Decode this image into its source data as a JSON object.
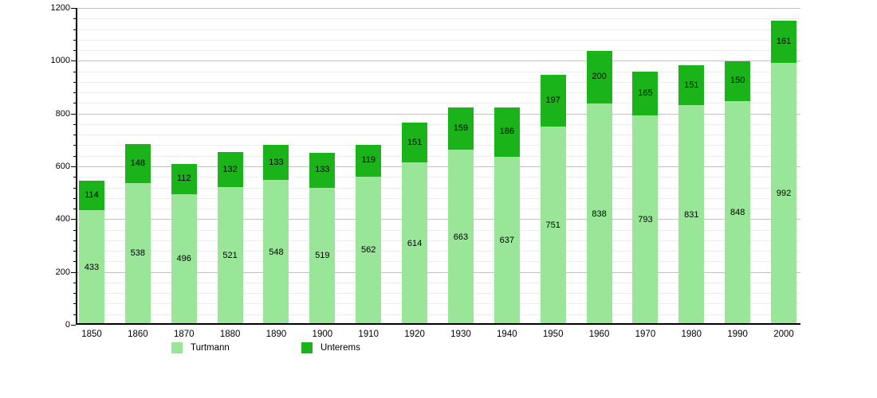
{
  "chart_data": {
    "type": "bar",
    "stacked": true,
    "title": "",
    "xlabel": "",
    "ylabel": "",
    "categories": [
      "1850",
      "1860",
      "1870",
      "1880",
      "1890",
      "1900",
      "1910",
      "1920",
      "1930",
      "1940",
      "1950",
      "1960",
      "1970",
      "1980",
      "1990",
      "2000"
    ],
    "series": [
      {
        "name": "Turtmann",
        "color": "#99e699",
        "values": [
          433,
          538,
          496,
          521,
          548,
          519,
          562,
          614,
          663,
          637,
          751,
          838,
          793,
          831,
          848,
          992
        ]
      },
      {
        "name": "Unterems",
        "color": "#1ab31a",
        "values": [
          114,
          148,
          112,
          132,
          133,
          133,
          119,
          151,
          159,
          186,
          197,
          200,
          165,
          151,
          150,
          161
        ]
      }
    ],
    "ylim": [
      0,
      1200
    ],
    "y_major_step": 200,
    "y_minor_step": 40,
    "grid": true,
    "legend_position": "bottom",
    "bar_value_labels": "centered-in-segment"
  },
  "legend": {
    "items": [
      {
        "label": "Turtmann",
        "color": "#99e699"
      },
      {
        "label": "Unterems",
        "color": "#1ab31a"
      }
    ]
  },
  "colors": {
    "axis": "#000000",
    "grid_major": "#c2c2c2",
    "grid_minor": "#ededed",
    "background": "#ffffff"
  }
}
